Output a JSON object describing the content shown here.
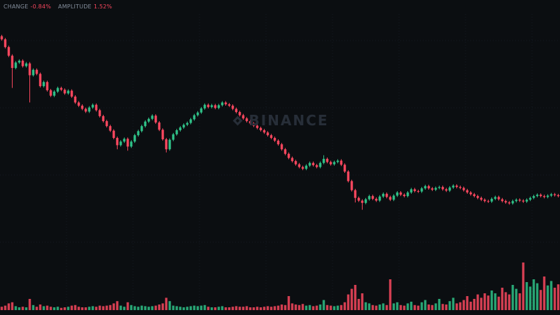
{
  "legend": {
    "items": [
      {
        "label": "CHANGE",
        "value": "-0.84%"
      },
      {
        "label": "AMPLITUDE",
        "value": "1.52%"
      }
    ]
  },
  "watermark": {
    "text": "BINANCE"
  },
  "colors": {
    "background": "#0b0e11",
    "up": "#2ebd85",
    "down": "#f6465d",
    "grid": "#161b22",
    "watermark": "#272e38",
    "legend_label": "#848e9c",
    "legend_value": "#f6465d"
  },
  "chart_data": {
    "type": "candlestick",
    "title": "",
    "xlabel": "",
    "ylabel": "",
    "ylim": [
      55,
      102
    ],
    "grid": true,
    "legend_position": "top-left",
    "candles": [
      [
        100.2,
        100.5,
        99.2,
        99.5
      ],
      [
        99.5,
        99.8,
        97.5,
        97.8
      ],
      [
        97.8,
        98.1,
        95.6,
        95.9
      ],
      [
        95.9,
        96.2,
        88.8,
        93.2
      ],
      [
        93.2,
        94.7,
        92.9,
        94.4
      ],
      [
        94.4,
        95.1,
        94.1,
        94.8
      ],
      [
        94.8,
        95.1,
        93.3,
        93.6
      ],
      [
        93.6,
        94.5,
        93.3,
        94.2
      ],
      [
        94.2,
        94.5,
        85.6,
        91.6
      ],
      [
        91.6,
        93.1,
        91.3,
        92.8
      ],
      [
        92.8,
        93.1,
        91.6,
        91.9
      ],
      [
        91.9,
        92.2,
        88.9,
        89.2
      ],
      [
        89.2,
        90.4,
        88.9,
        90.1
      ],
      [
        90.1,
        90.4,
        88.0,
        88.3
      ],
      [
        88.3,
        88.6,
        86.8,
        87.1
      ],
      [
        87.1,
        88.3,
        86.8,
        88.0
      ],
      [
        88.0,
        89.1,
        87.7,
        88.8
      ],
      [
        88.8,
        89.1,
        88.1,
        88.4
      ],
      [
        88.4,
        88.7,
        87.3,
        87.6
      ],
      [
        87.6,
        88.5,
        87.3,
        88.2
      ],
      [
        88.2,
        88.5,
        86.6,
        86.9
      ],
      [
        86.9,
        87.2,
        85.3,
        85.6
      ],
      [
        85.6,
        85.9,
        84.6,
        84.9
      ],
      [
        84.9,
        85.2,
        83.9,
        84.2
      ],
      [
        84.2,
        84.5,
        83.3,
        83.6
      ],
      [
        83.6,
        84.8,
        83.3,
        84.5
      ],
      [
        84.5,
        85.4,
        84.2,
        85.1
      ],
      [
        85.1,
        85.4,
        83.6,
        83.9
      ],
      [
        83.9,
        84.2,
        82.3,
        82.6
      ],
      [
        82.6,
        82.9,
        81.2,
        81.5
      ],
      [
        81.5,
        81.8,
        80.1,
        80.4
      ],
      [
        80.4,
        80.7,
        79.1,
        79.4
      ],
      [
        79.4,
        79.7,
        77.5,
        77.8
      ],
      [
        77.8,
        78.1,
        75.3,
        76.2
      ],
      [
        76.2,
        77.3,
        75.9,
        77.0
      ],
      [
        77.0,
        77.9,
        76.7,
        77.6
      ],
      [
        77.6,
        77.9,
        75.0,
        75.9
      ],
      [
        75.9,
        77.3,
        75.6,
        77.0
      ],
      [
        77.0,
        78.7,
        76.7,
        78.4
      ],
      [
        78.4,
        79.6,
        78.1,
        79.3
      ],
      [
        79.3,
        80.7,
        79.0,
        80.4
      ],
      [
        80.4,
        81.7,
        80.1,
        81.4
      ],
      [
        81.4,
        82.3,
        81.1,
        82.0
      ],
      [
        82.0,
        83.0,
        81.7,
        82.7
      ],
      [
        82.7,
        83.0,
        80.9,
        81.2
      ],
      [
        81.2,
        81.5,
        79.3,
        79.6
      ],
      [
        79.6,
        79.9,
        77.2,
        77.5
      ],
      [
        77.5,
        77.8,
        74.6,
        75.3
      ],
      [
        75.3,
        77.7,
        75.0,
        77.4
      ],
      [
        77.4,
        78.9,
        77.1,
        78.6
      ],
      [
        78.6,
        79.8,
        78.3,
        79.5
      ],
      [
        79.5,
        80.4,
        79.2,
        80.1
      ],
      [
        80.1,
        81.0,
        79.8,
        80.7
      ],
      [
        80.7,
        81.4,
        80.4,
        81.1
      ],
      [
        81.1,
        82.2,
        80.8,
        81.9
      ],
      [
        81.9,
        83.1,
        81.6,
        82.8
      ],
      [
        82.8,
        83.7,
        82.5,
        83.4
      ],
      [
        83.4,
        84.6,
        83.1,
        84.3
      ],
      [
        84.3,
        85.4,
        84.0,
        85.1
      ],
      [
        85.1,
        85.4,
        84.3,
        84.6
      ],
      [
        84.6,
        85.3,
        84.3,
        85.0
      ],
      [
        85.0,
        85.3,
        84.1,
        84.4
      ],
      [
        84.4,
        85.3,
        84.1,
        85.0
      ],
      [
        85.0,
        85.9,
        84.7,
        85.6
      ],
      [
        85.6,
        85.9,
        84.9,
        85.2
      ],
      [
        85.2,
        85.5,
        84.6,
        84.9
      ],
      [
        84.9,
        85.2,
        83.9,
        84.2
      ],
      [
        84.2,
        84.5,
        83.2,
        83.5
      ],
      [
        83.5,
        83.8,
        82.5,
        82.8
      ],
      [
        82.8,
        83.1,
        81.8,
        82.1
      ],
      [
        82.1,
        82.4,
        81.2,
        81.5
      ],
      [
        81.5,
        81.8,
        80.7,
        81.0
      ],
      [
        81.0,
        81.3,
        80.2,
        80.5
      ],
      [
        80.5,
        80.8,
        79.7,
        80.0
      ],
      [
        80.0,
        80.3,
        79.2,
        79.5
      ],
      [
        79.5,
        79.8,
        78.7,
        79.0
      ],
      [
        79.0,
        79.3,
        78.1,
        78.4
      ],
      [
        78.4,
        78.7,
        77.5,
        77.8
      ],
      [
        77.8,
        78.1,
        76.9,
        77.2
      ],
      [
        77.2,
        77.5,
        76.1,
        76.4
      ],
      [
        76.4,
        76.7,
        75.0,
        75.3
      ],
      [
        75.3,
        75.6,
        74.0,
        74.3
      ],
      [
        74.3,
        74.6,
        73.1,
        73.4
      ],
      [
        73.4,
        73.7,
        72.4,
        72.7
      ],
      [
        72.7,
        73.0,
        71.7,
        72.0
      ],
      [
        72.0,
        72.3,
        71.1,
        71.4
      ],
      [
        71.4,
        71.7,
        70.7,
        71.0
      ],
      [
        71.0,
        72.0,
        70.7,
        71.7
      ],
      [
        71.7,
        72.6,
        71.4,
        72.3
      ],
      [
        72.3,
        72.6,
        71.5,
        71.8
      ],
      [
        71.8,
        72.1,
        71.1,
        71.4
      ],
      [
        71.4,
        72.6,
        71.1,
        72.3
      ],
      [
        72.3,
        74.0,
        72.0,
        73.2
      ],
      [
        73.2,
        73.5,
        72.2,
        72.5
      ],
      [
        72.5,
        72.8,
        71.7,
        72.0
      ],
      [
        72.0,
        72.8,
        71.7,
        72.5
      ],
      [
        72.5,
        73.1,
        72.2,
        72.8
      ],
      [
        72.8,
        73.1,
        71.6,
        71.9
      ],
      [
        71.9,
        72.2,
        70.1,
        70.4
      ],
      [
        70.4,
        70.7,
        68.0,
        68.3
      ],
      [
        68.3,
        68.6,
        66.0,
        66.3
      ],
      [
        66.3,
        66.6,
        63.6,
        64.6
      ],
      [
        64.6,
        64.9,
        63.7,
        64.0
      ],
      [
        64.0,
        64.3,
        62.0,
        63.5
      ],
      [
        63.5,
        64.6,
        63.2,
        64.3
      ],
      [
        64.3,
        65.3,
        64.0,
        65.0
      ],
      [
        65.0,
        65.3,
        64.1,
        64.4
      ],
      [
        64.4,
        64.7,
        63.7,
        64.0
      ],
      [
        64.0,
        65.2,
        63.7,
        64.9
      ],
      [
        64.9,
        65.8,
        64.6,
        65.5
      ],
      [
        65.5,
        65.8,
        64.5,
        64.8
      ],
      [
        64.8,
        65.1,
        63.9,
        64.2
      ],
      [
        64.2,
        65.4,
        63.9,
        65.1
      ],
      [
        65.1,
        66.1,
        64.8,
        65.8
      ],
      [
        65.8,
        66.1,
        65.0,
        65.3
      ],
      [
        65.3,
        65.6,
        64.7,
        65.0
      ],
      [
        65.0,
        66.1,
        64.7,
        65.8
      ],
      [
        65.8,
        66.8,
        65.5,
        66.5
      ],
      [
        66.5,
        66.8,
        65.8,
        66.1
      ],
      [
        66.1,
        66.4,
        65.7,
        66.0
      ],
      [
        66.0,
        67.0,
        65.7,
        66.7
      ],
      [
        66.7,
        67.5,
        66.4,
        67.2
      ],
      [
        67.2,
        67.5,
        66.4,
        66.7
      ],
      [
        66.7,
        67.0,
        66.1,
        66.4
      ],
      [
        66.4,
        67.1,
        66.1,
        66.8
      ],
      [
        66.8,
        67.3,
        66.5,
        67.0
      ],
      [
        67.0,
        67.3,
        66.2,
        66.5
      ],
      [
        66.5,
        66.8,
        65.9,
        66.2
      ],
      [
        66.2,
        67.2,
        65.9,
        66.9
      ],
      [
        66.9,
        67.6,
        66.6,
        67.3
      ],
      [
        67.3,
        67.6,
        66.7,
        67.0
      ],
      [
        67.0,
        67.3,
        66.5,
        66.8
      ],
      [
        66.8,
        67.1,
        66.0,
        66.3
      ],
      [
        66.3,
        66.6,
        65.5,
        65.8
      ],
      [
        65.8,
        66.1,
        65.1,
        65.4
      ],
      [
        65.4,
        65.7,
        64.7,
        65.0
      ],
      [
        65.0,
        65.3,
        64.3,
        64.6
      ],
      [
        64.6,
        64.9,
        63.9,
        64.2
      ],
      [
        64.2,
        64.5,
        63.6,
        63.9
      ],
      [
        63.9,
        64.2,
        63.5,
        63.8
      ],
      [
        63.8,
        64.7,
        63.5,
        64.4
      ],
      [
        64.4,
        65.1,
        64.1,
        64.8
      ],
      [
        64.8,
        65.1,
        64.0,
        64.3
      ],
      [
        64.3,
        64.6,
        63.6,
        63.9
      ],
      [
        63.9,
        64.2,
        63.3,
        63.6
      ],
      [
        63.6,
        63.9,
        63.1,
        63.4
      ],
      [
        63.4,
        64.2,
        63.1,
        63.9
      ],
      [
        63.9,
        64.5,
        63.6,
        64.2
      ],
      [
        64.2,
        64.5,
        63.7,
        64.0
      ],
      [
        64.0,
        64.3,
        63.5,
        63.8
      ],
      [
        63.8,
        64.5,
        63.5,
        64.2
      ],
      [
        64.2,
        64.9,
        63.9,
        64.6
      ],
      [
        64.6,
        65.3,
        64.3,
        65.0
      ],
      [
        65.0,
        65.6,
        64.7,
        65.3
      ],
      [
        65.3,
        65.6,
        64.7,
        65.0
      ],
      [
        65.0,
        65.3,
        64.5,
        64.8
      ],
      [
        64.8,
        65.4,
        64.5,
        65.1
      ],
      [
        65.1,
        65.7,
        64.8,
        65.4
      ],
      [
        65.4,
        65.7,
        64.9,
        65.2
      ],
      [
        65.2,
        65.5,
        64.7,
        65.0
      ]
    ],
    "volumes": [
      6,
      8,
      12,
      14,
      7,
      5,
      6,
      5,
      20,
      9,
      6,
      10,
      7,
      8,
      6,
      5,
      6,
      4,
      5,
      6,
      8,
      9,
      6,
      5,
      5,
      6,
      7,
      6,
      8,
      7,
      8,
      9,
      12,
      16,
      8,
      6,
      14,
      9,
      7,
      6,
      8,
      7,
      6,
      7,
      8,
      10,
      12,
      22,
      16,
      8,
      7,
      6,
      5,
      6,
      7,
      8,
      7,
      8,
      9,
      6,
      5,
      5,
      6,
      7,
      5,
      5,
      6,
      7,
      6,
      6,
      7,
      5,
      5,
      6,
      5,
      6,
      7,
      6,
      7,
      8,
      10,
      9,
      25,
      12,
      10,
      9,
      11,
      8,
      9,
      7,
      8,
      10,
      18,
      9,
      8,
      7,
      8,
      9,
      14,
      28,
      38,
      45,
      20,
      30,
      14,
      12,
      9,
      8,
      10,
      12,
      9,
      55,
      12,
      14,
      9,
      8,
      12,
      15,
      9,
      8,
      14,
      18,
      10,
      9,
      12,
      20,
      11,
      10,
      16,
      22,
      12,
      14,
      18,
      25,
      15,
      20,
      28,
      22,
      30,
      26,
      35,
      30,
      24,
      40,
      32,
      28,
      45,
      38,
      30,
      85,
      50,
      42,
      55,
      48,
      36,
      60,
      44,
      52,
      40,
      46
    ]
  }
}
